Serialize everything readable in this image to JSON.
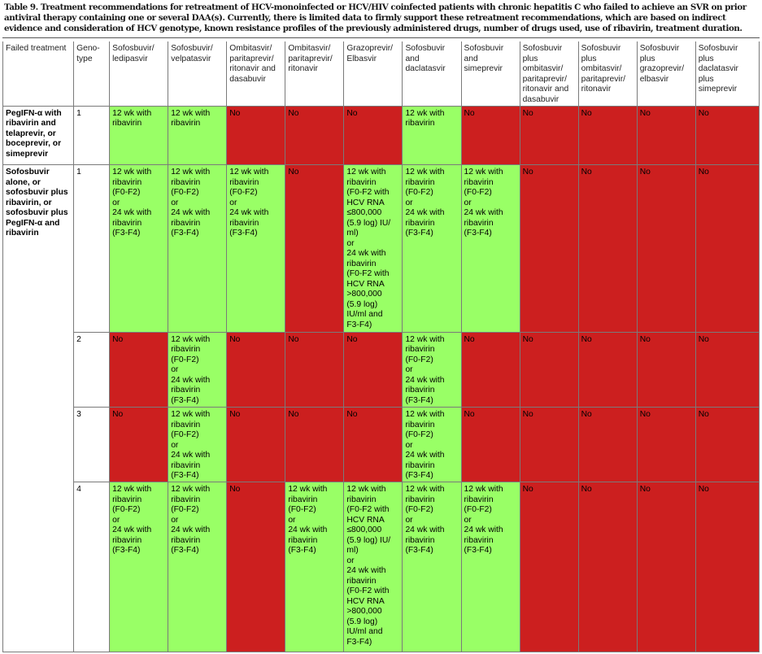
{
  "caption": "Table 9. Treatment recommendations for retreatment of HCV-monoinfected or HCV/HIV coinfected patients with chronic hepatitis C who failed to achieve an SVR on prior antiviral therapy containing one or several DAA(s). Currently, there is limited data to firmly support these retreatment recommendations, which are based on indirect evidence and consideration of HCV genotype, known resistance profiles of the previously administered drugs, number of drugs used, use of ribavirin, treatment duration.",
  "colors": {
    "recommended": "#99ff66",
    "not_recommended": "#cc1f1f"
  },
  "headers": [
    "Failed treatment",
    "Geno-\ntype",
    "Sofosbuvir/\nledipasvir",
    "Sofosbuvir/\nvelpatasvir",
    "Ombitasvir/\nparitaprevir/\nritonavir and\ndasabuvir",
    "Ombitasvir/\nparitaprevir/\nritonavir",
    "Grazoprevir/\nElbasvir",
    "Sofosbuvir\nand\ndaclatasvir",
    "Sofosbuvir\nand\nsimeprevir",
    "Sofosbuvir\nplus\nombitasvir/\nparitaprevir/\nritonavir and\ndasabuvir",
    "Sofosbuvir\nplus\nombitasvir/\nparitaprevir/\nritonavir",
    "Sofosbuvir\nplus\ngrazoprevir/\nelbasvir",
    "Sofosbuvir\nplus\ndaclatasvir\nplus\nsimeprevir"
  ],
  "rows": [
    {
      "failed": "PegIFN-α with\nribavirin and\ntelaprevir, or\nboceprevir, or\nsimeprevir",
      "genotype": "1",
      "cells": [
        "12 wk with\nribavirin",
        "12 wk with\nribavirin",
        "No",
        "No",
        "No",
        "12 wk with\nribavirin",
        "No",
        "No",
        "No",
        "No",
        "No"
      ]
    },
    {
      "failed": "Sofosbuvir\nalone, or\nsofosbuvir plus\nribavirin, or\nsofosbuvir plus\nPegIFN-α and\nribavirin",
      "genotype": "1",
      "cells": [
        "12 wk with\nribavirin\n(F0-F2)\nor\n24 wk with\nribavirin\n(F3-F4)",
        "12 wk with\nribavirin\n(F0-F2)\nor\n24 wk with\nribavirin\n(F3-F4)",
        "12 wk with\nribavirin\n(F0-F2)\nor\n24 wk with\nribavirin\n(F3-F4)",
        "No",
        "12 wk with\nribavirin\n(F0-F2 with\nHCV RNA\n≤800,000\n(5.9 log) IU/\nml)\nor\n24 wk with\nribavirin\n(F0-F2 with\nHCV RNA\n>800,000\n(5.9 log)\nIU/ml and\nF3-F4)",
        "12 wk with\nribavirin\n(F0-F2)\nor\n24 wk with\nribavirin\n(F3-F4)",
        "12 wk with\nribavirin\n(F0-F2)\nor\n24 wk with\nribavirin\n(F3-F4)",
        "No",
        "No",
        "No",
        "No"
      ]
    },
    {
      "failed": "",
      "genotype": "2",
      "cells": [
        "No",
        "12 wk with\nribavirin\n(F0-F2)\nor\n24 wk with\nribavirin\n(F3-F4)",
        "No",
        "No",
        "No",
        "12 wk with\nribavirin\n(F0-F2)\nor\n24 wk with\nribavirin\n(F3-F4)",
        "No",
        "No",
        "No",
        "No",
        "No"
      ]
    },
    {
      "failed": "",
      "genotype": "3",
      "cells": [
        "No",
        "12 wk with\nribavirin\n(F0-F2)\nor\n24 wk with\nribavirin\n(F3-F4)",
        "No",
        "No",
        "No",
        "12 wk with\nribavirin\n(F0-F2)\nor\n24 wk with\nribavirin\n(F3-F4)",
        "No",
        "No",
        "No",
        "No",
        "No"
      ]
    },
    {
      "failed": "",
      "genotype": "4",
      "cells": [
        "12 wk with\nribavirin\n(F0-F2)\nor\n24 wk with\nribavirin\n(F3-F4)",
        "12 wk with\nribavirin\n(F0-F2)\nor\n24 wk with\nribavirin\n(F3-F4)",
        "No",
        "12 wk with\nribavirin\n(F0-F2)\nor\n24 wk with\nribavirin\n(F3-F4)",
        "12 wk with\nribavirin\n(F0-F2 with\nHCV RNA\n≤800,000\n(5.9 log) IU/\nml)\nor\n24 wk with\nribavirin\n(F0-F2 with\nHCV RNA\n>800,000\n(5.9 log)\nIU/ml and\nF3-F4)",
        "12 wk with\nribavirin\n(F0-F2)\nor\n24 wk with\nribavirin\n(F3-F4)",
        "12 wk with\nribavirin\n(F0-F2)\nor\n24 wk with\nribavirin\n(F3-F4)",
        "No",
        "No",
        "No",
        "No"
      ]
    }
  ]
}
